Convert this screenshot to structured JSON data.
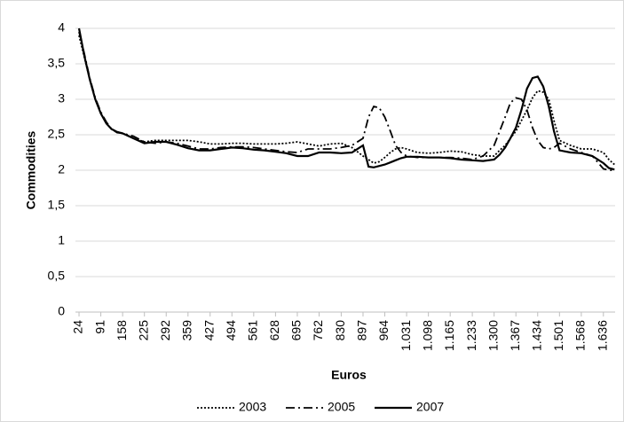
{
  "chart_data": {
    "type": "line",
    "x_label": "Euros",
    "y_label": "Commodities",
    "x": [
      24,
      40,
      57,
      74,
      91,
      108,
      124,
      141,
      158,
      191,
      225,
      258,
      292,
      325,
      359,
      393,
      427,
      460,
      494,
      527,
      561,
      594,
      628,
      661,
      695,
      728,
      762,
      796,
      830,
      863,
      897,
      914,
      930,
      947,
      964,
      981,
      997,
      1014,
      1031,
      1064,
      1098,
      1131,
      1165,
      1199,
      1233,
      1266,
      1300,
      1317,
      1334,
      1350,
      1367,
      1384,
      1401,
      1418,
      1434,
      1451,
      1468,
      1484,
      1501,
      1535,
      1568,
      1602,
      1636,
      1653,
      1670
    ],
    "series": [
      {
        "name": "2003",
        "color": "#000000",
        "dash": "dotted",
        "values": [
          3.9,
          3.6,
          3.28,
          3.0,
          2.8,
          2.66,
          2.58,
          2.54,
          2.52,
          2.45,
          2.4,
          2.42,
          2.42,
          2.42,
          2.42,
          2.4,
          2.37,
          2.37,
          2.38,
          2.38,
          2.37,
          2.37,
          2.37,
          2.38,
          2.4,
          2.37,
          2.34,
          2.37,
          2.38,
          2.32,
          2.2,
          2.15,
          2.1,
          2.12,
          2.18,
          2.25,
          2.3,
          2.32,
          2.3,
          2.25,
          2.24,
          2.25,
          2.27,
          2.26,
          2.22,
          2.2,
          2.2,
          2.28,
          2.35,
          2.45,
          2.55,
          2.7,
          2.85,
          3.02,
          3.12,
          3.1,
          3.0,
          2.7,
          2.42,
          2.35,
          2.3,
          2.3,
          2.25,
          2.15,
          2.08
        ]
      },
      {
        "name": "2005",
        "color": "#000000",
        "dash": "dash-dot",
        "values": [
          3.95,
          3.65,
          3.3,
          3.02,
          2.82,
          2.68,
          2.58,
          2.53,
          2.52,
          2.48,
          2.4,
          2.38,
          2.4,
          2.38,
          2.34,
          2.3,
          2.3,
          2.32,
          2.33,
          2.33,
          2.32,
          2.3,
          2.28,
          2.26,
          2.25,
          2.3,
          2.3,
          2.3,
          2.32,
          2.35,
          2.45,
          2.75,
          2.9,
          2.88,
          2.75,
          2.55,
          2.35,
          2.25,
          2.2,
          2.18,
          2.18,
          2.18,
          2.18,
          2.17,
          2.15,
          2.2,
          2.35,
          2.55,
          2.75,
          2.95,
          3.02,
          3.0,
          2.85,
          2.6,
          2.42,
          2.32,
          2.3,
          2.32,
          2.38,
          2.3,
          2.25,
          2.2,
          2.02,
          2.0,
          2.0
        ]
      },
      {
        "name": "2007",
        "color": "#000000",
        "dash": "solid",
        "values": [
          4.0,
          3.62,
          3.28,
          3.0,
          2.8,
          2.66,
          2.58,
          2.54,
          2.52,
          2.45,
          2.38,
          2.4,
          2.4,
          2.36,
          2.31,
          2.28,
          2.28,
          2.3,
          2.32,
          2.31,
          2.29,
          2.28,
          2.26,
          2.24,
          2.2,
          2.2,
          2.25,
          2.25,
          2.24,
          2.25,
          2.35,
          2.05,
          2.04,
          2.06,
          2.08,
          2.11,
          2.14,
          2.17,
          2.19,
          2.19,
          2.18,
          2.18,
          2.17,
          2.15,
          2.14,
          2.13,
          2.15,
          2.22,
          2.32,
          2.45,
          2.6,
          2.85,
          3.15,
          3.3,
          3.32,
          3.18,
          2.9,
          2.55,
          2.28,
          2.25,
          2.24,
          2.2,
          2.1,
          2.03,
          2.01
        ]
      }
    ],
    "xlim": [
      13,
      1672
    ],
    "xticks": [
      24,
      91,
      158,
      225,
      292,
      359,
      427,
      494,
      561,
      628,
      695,
      762,
      830,
      897,
      964,
      {
        "value": 1031,
        "label": "1.031"
      },
      {
        "value": 1098,
        "label": "1.098"
      },
      {
        "value": 1165,
        "label": "1.165"
      },
      {
        "value": 1233,
        "label": "1.233"
      },
      {
        "value": 1300,
        "label": "1.300"
      },
      {
        "value": 1367,
        "label": "1.367"
      },
      {
        "value": 1434,
        "label": "1.434"
      },
      {
        "value": 1501,
        "label": "1.501"
      },
      {
        "value": 1568,
        "label": "1.568"
      },
      {
        "value": 1636,
        "label": "1.636"
      }
    ],
    "ylim": [
      0,
      4
    ],
    "yticks": [
      0,
      {
        "value": 0.5,
        "label": "0,5"
      },
      1,
      {
        "value": 1.5,
        "label": "1,5"
      },
      2,
      {
        "value": 2.5,
        "label": "2,5"
      },
      3,
      {
        "value": 3.5,
        "label": "3,5"
      },
      4
    ],
    "grid": true,
    "legend": "bottom"
  }
}
